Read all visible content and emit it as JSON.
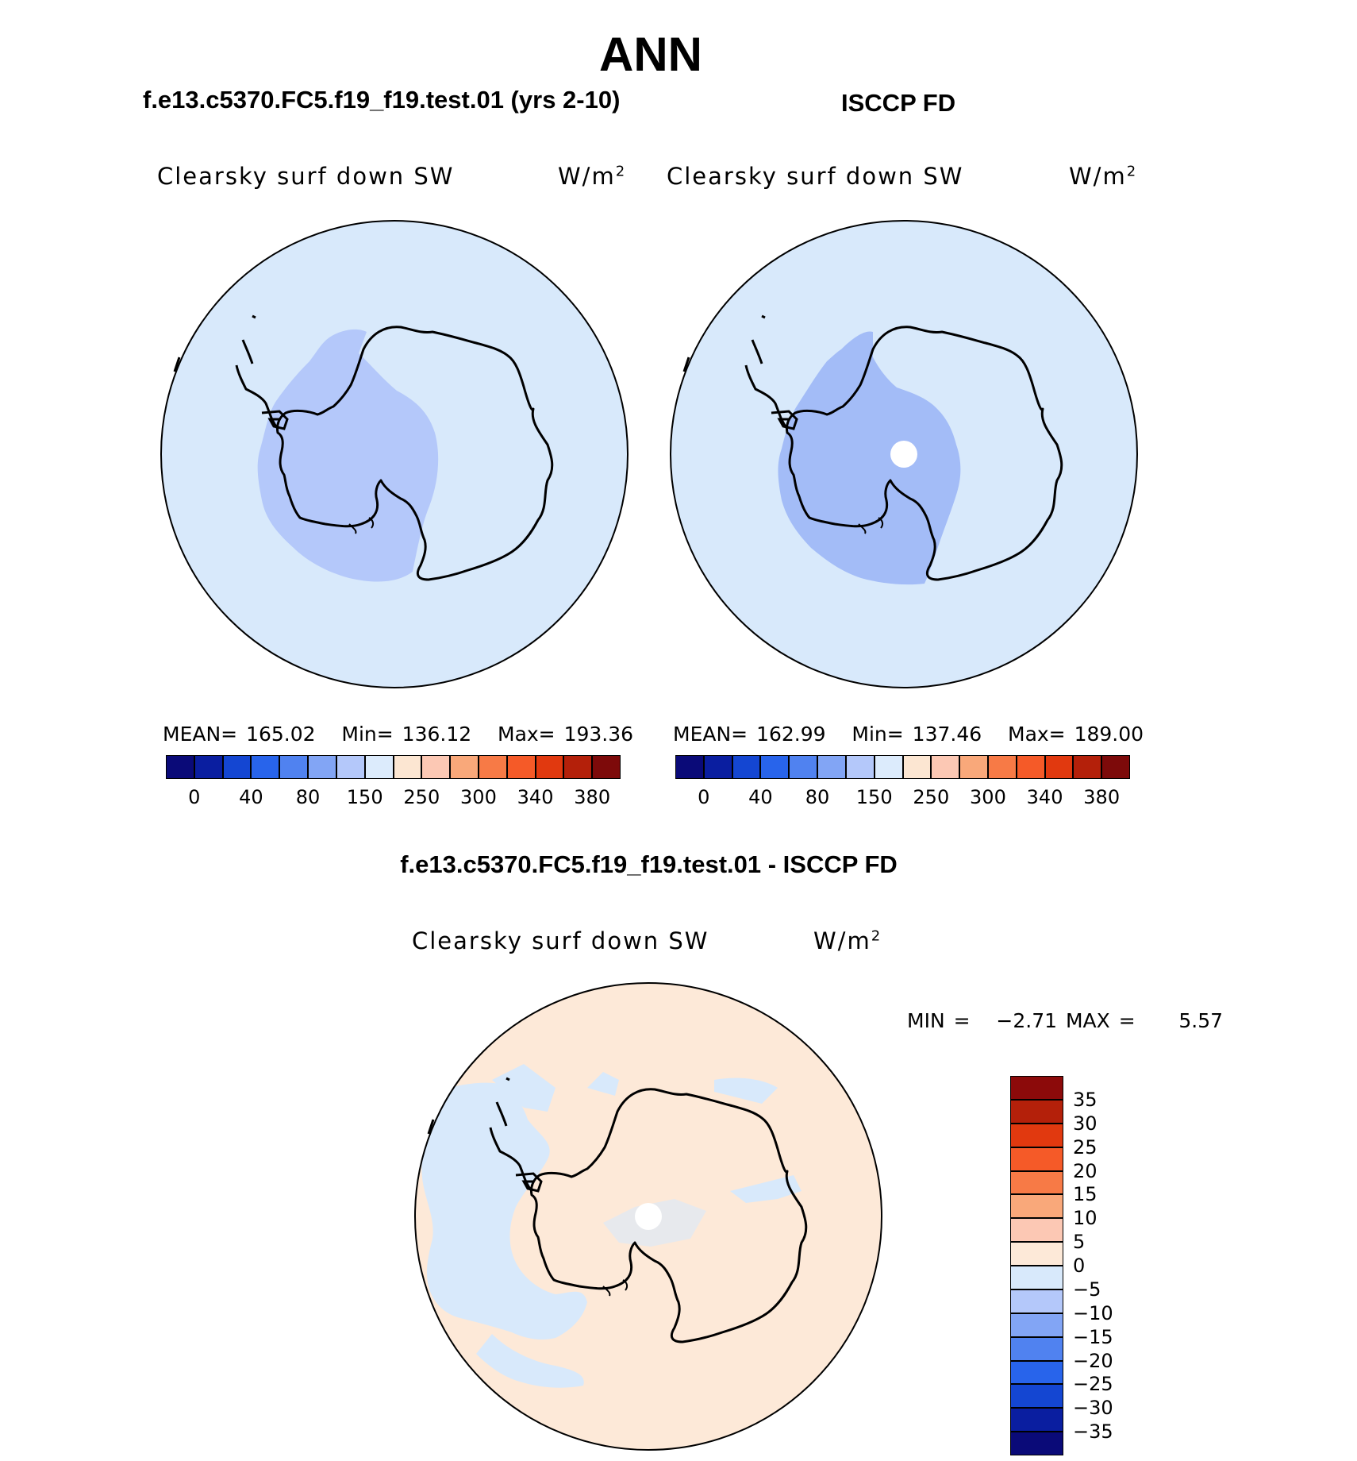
{
  "figure": {
    "season": "ANN"
  },
  "panels": {
    "model": {
      "title": "f.e13.c5370.FC5.f19_f19.test.01 (yrs 2-10)",
      "variable": "Clearsky surf down SW",
      "units_base": "W/m",
      "units_exp": "2",
      "stats": {
        "mean_label": "MEAN=",
        "mean": "165.02",
        "min_label": "Min=",
        "min": "136.12",
        "max_label": "Max=",
        "max": "193.36"
      }
    },
    "obs": {
      "title": "ISCCP FD",
      "variable": "Clearsky surf down SW",
      "units_base": "W/m",
      "units_exp": "2",
      "stats": {
        "mean_label": "MEAN=",
        "mean": "162.99",
        "min_label": "Min=",
        "min": "137.46",
        "max_label": "Max=",
        "max": "189.00"
      }
    },
    "diff": {
      "title": "f.e13.c5370.FC5.f19_f19.test.01 - ISCCP FD",
      "variable": "Clearsky surf down SW",
      "units_base": "W/m",
      "units_exp": "2",
      "minmax": {
        "min_label": "MIN =",
        "min": "−2.71",
        "max_label": "MAX =",
        "max": "5.57"
      }
    }
  },
  "colorbar_abs": {
    "colors": [
      "#0a0a78",
      "#0a1ea0",
      "#1446d2",
      "#2864eb",
      "#5082f0",
      "#82a5f5",
      "#b4c8fa",
      "#dcebfc",
      "#fce6d2",
      "#fcc8b4",
      "#f9a87a",
      "#f77a46",
      "#f55a28",
      "#e1390f",
      "#b4200a",
      "#7d0a0a"
    ],
    "labels": [
      "0",
      "40",
      "80",
      "150",
      "250",
      "300",
      "340",
      "380"
    ]
  },
  "colorbar_diff": {
    "colors_top_to_bottom": [
      "#8c0a0a",
      "#b4200a",
      "#e1390f",
      "#f55a28",
      "#f77a46",
      "#f9a87a",
      "#fcc8b4",
      "#fde9d8",
      "#d8e9fb",
      "#b4c8fa",
      "#82a5f5",
      "#5082f0",
      "#2864eb",
      "#1446d2",
      "#0a1ea0",
      "#0a0a78"
    ],
    "labels_top_to_bottom": [
      "35",
      "30",
      "25",
      "20",
      "15",
      "10",
      "5",
      "0",
      "−5",
      "−10",
      "−15",
      "−20",
      "−25",
      "−30",
      "−35"
    ]
  },
  "fills": {
    "ocean": "#d8e9fb",
    "low": "#b4c8fa",
    "lower": "#a3bcf7",
    "diff_base": "#fde9d8",
    "diff_neg": "#d8e9fb",
    "missing": "#ffffff"
  }
}
